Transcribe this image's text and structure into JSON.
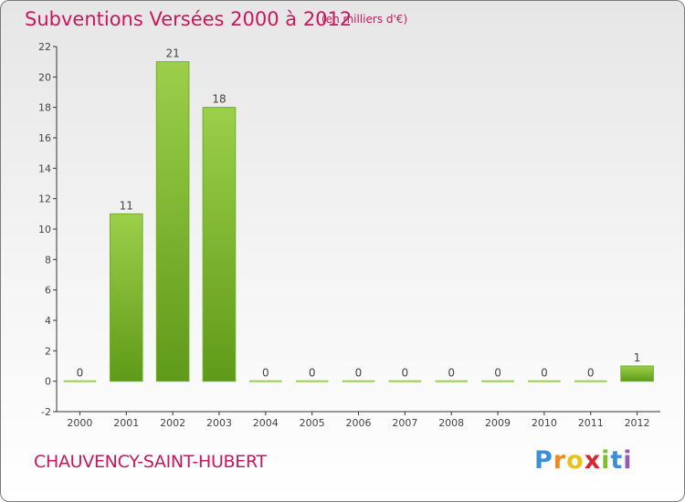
{
  "header": {
    "title": "Subventions Versées 2000 à 2012",
    "unit": "(en milliers d'€)"
  },
  "footer": {
    "commune": "CHAUVENCY-SAINT-HUBERT",
    "logo_letters": [
      "P",
      "r",
      "o",
      "x",
      "i",
      "t",
      "i"
    ],
    "logo_colors": [
      "#3a8fd8",
      "#f08a1c",
      "#e8c21a",
      "#d8262e",
      "#7cbf2a",
      "#3a8fd8",
      "#9b59b6"
    ]
  },
  "chart_data": {
    "type": "bar",
    "categories": [
      "2000",
      "2001",
      "2002",
      "2003",
      "2004",
      "2005",
      "2006",
      "2007",
      "2008",
      "2009",
      "2010",
      "2011",
      "2012"
    ],
    "values": [
      0,
      11,
      21,
      18,
      0,
      0,
      0,
      0,
      0,
      0,
      0,
      0,
      1
    ],
    "data_labels": [
      "0",
      "11",
      "21",
      "18",
      "0",
      "0",
      "0",
      "0",
      "0",
      "0",
      "0",
      "0",
      "1"
    ],
    "yticks": [
      "-2",
      "0",
      "2",
      "4",
      "6",
      "8",
      "10",
      "12",
      "14",
      "16",
      "18",
      "20",
      "22"
    ],
    "ylim": [
      -2,
      22
    ],
    "grid": false,
    "bar_color_top": "#9ccf4a",
    "bar_color_bottom": "#5f9a18",
    "axis_color": "#333333",
    "label_color": "#444444"
  }
}
